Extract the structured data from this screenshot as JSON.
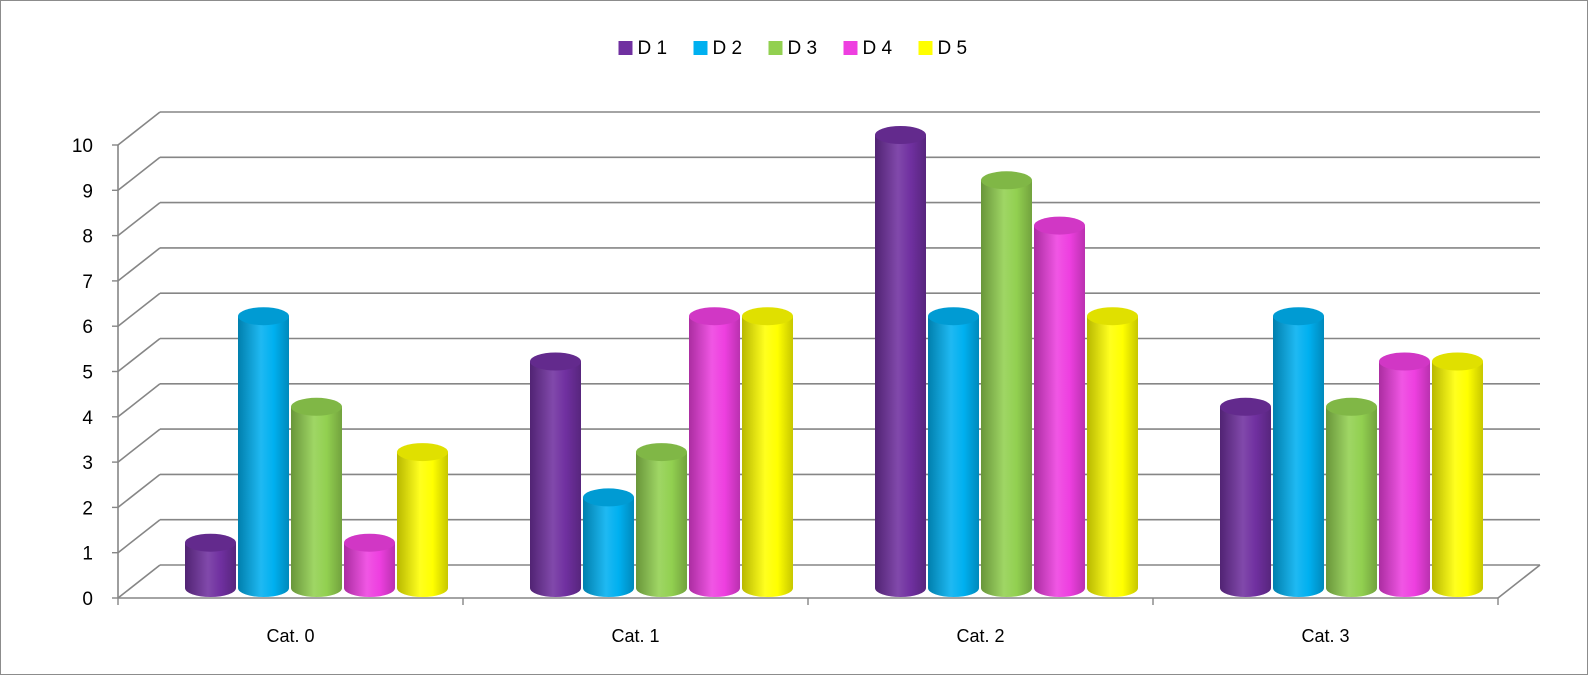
{
  "chart_data": {
    "type": "bar",
    "style": "3d-cylinder",
    "title": "",
    "xlabel": "",
    "ylabel": "",
    "categories": [
      "Cat. 0",
      "Cat. 1",
      "Cat. 2",
      "Cat. 3"
    ],
    "series": [
      {
        "name": "D 1",
        "color": "#7030A0",
        "values": [
          1,
          5,
          10,
          4
        ]
      },
      {
        "name": "D 2",
        "color": "#00B0F0",
        "values": [
          6,
          2,
          6,
          6
        ]
      },
      {
        "name": "D 3",
        "color": "#92D050",
        "values": [
          4,
          3,
          9,
          4
        ]
      },
      {
        "name": "D 4",
        "color": "#EE3FE0",
        "values": [
          1,
          6,
          8,
          5
        ]
      },
      {
        "name": "D 5",
        "color": "#FFFF00",
        "values": [
          3,
          6,
          6,
          5
        ]
      }
    ],
    "ylim": [
      0,
      10
    ],
    "yticks": [
      "0",
      "1",
      "2",
      "3",
      "4",
      "5",
      "6",
      "7",
      "8",
      "9",
      "10"
    ],
    "grid": true,
    "legend": "top-center"
  }
}
